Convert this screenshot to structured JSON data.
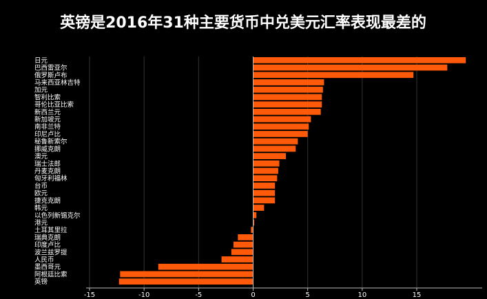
{
  "chart_data": {
    "type": "bar",
    "orientation": "horizontal",
    "title": "英镑是2016年31种主要货币中兑美元汇率表现最差的",
    "xlabel": "",
    "ylabel": "",
    "xlim": [
      -15,
      21
    ],
    "xticks": [
      -15,
      -10,
      -5,
      0,
      5,
      10,
      15
    ],
    "grid": true,
    "bar_color": "#ff5a0a",
    "background": "#000000",
    "categories": [
      "日元",
      "巴西雷亚尔",
      "俄罗斯卢布",
      "马来西亚林吉特",
      "加元",
      "智利比索",
      "哥伦比亚比索",
      "新西兰元",
      "新加坡元",
      "南非兰特",
      "印尼卢比",
      "秘鲁新索尔",
      "挪威克朗",
      "澳元",
      "瑞士法郎",
      "丹麦克朗",
      "匈牙利福林",
      "台币",
      "欧元",
      "捷克克朗",
      "韩元",
      "以色列新锡克尔",
      "港元",
      "土耳其里拉",
      "瑞典克朗",
      "印度卢比",
      "波兰兹罗提",
      "人民币",
      "墨西哥元",
      "阿根廷比索",
      "英镑"
    ],
    "values": [
      19.5,
      17.8,
      14.7,
      6.5,
      6.4,
      6.3,
      6.3,
      6.2,
      5.3,
      5.1,
      5.0,
      4.1,
      3.9,
      3.0,
      2.4,
      2.3,
      2.2,
      2.0,
      2.0,
      2.0,
      1.0,
      0.3,
      0.1,
      -0.2,
      -1.4,
      -1.8,
      -2.0,
      -2.9,
      -8.7,
      -12.2,
      -12.3
    ]
  }
}
